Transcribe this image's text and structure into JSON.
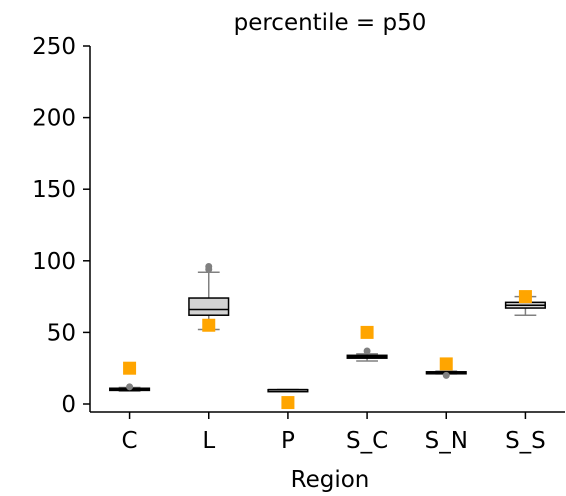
{
  "chart_data": {
    "type": "box",
    "title": "percentile = p50",
    "xlabel": "Region",
    "ylabel": "",
    "ylim": [
      0,
      250
    ],
    "yticks": [
      0,
      50,
      100,
      150,
      200,
      250
    ],
    "categories": [
      "C",
      "L",
      "P",
      "S_C",
      "S_N",
      "S_S"
    ],
    "boxes": [
      {
        "category": "C",
        "whislo": 9,
        "q1": 9.5,
        "med": 10,
        "q3": 11,
        "whishi": 11.5,
        "fliers": [
          12
        ]
      },
      {
        "category": "L",
        "whislo": 52,
        "q1": 62,
        "med": 66,
        "q3": 74,
        "whishi": 92,
        "fliers": [
          94,
          96
        ]
      },
      {
        "category": "P",
        "whislo": 10,
        "q1": 10,
        "med": 10,
        "q3": 10,
        "whishi": 10,
        "fliers": []
      },
      {
        "category": "S_C",
        "whislo": 30,
        "q1": 32,
        "med": 33,
        "q3": 34,
        "whishi": 35,
        "fliers": [
          37
        ]
      },
      {
        "category": "S_N",
        "whislo": 21,
        "q1": 21.5,
        "med": 22,
        "q3": 22.5,
        "whishi": 23,
        "fliers": [
          20
        ]
      },
      {
        "category": "S_S",
        "whislo": 62,
        "q1": 67,
        "med": 69,
        "q3": 71,
        "whishi": 75,
        "fliers": []
      }
    ],
    "markers": {
      "values": [
        25,
        55,
        1,
        50,
        28,
        75
      ],
      "color": "#FFA500",
      "shape": "square"
    },
    "box_color": "#d3d3d3",
    "flier_color": "#808080",
    "grid": false
  }
}
